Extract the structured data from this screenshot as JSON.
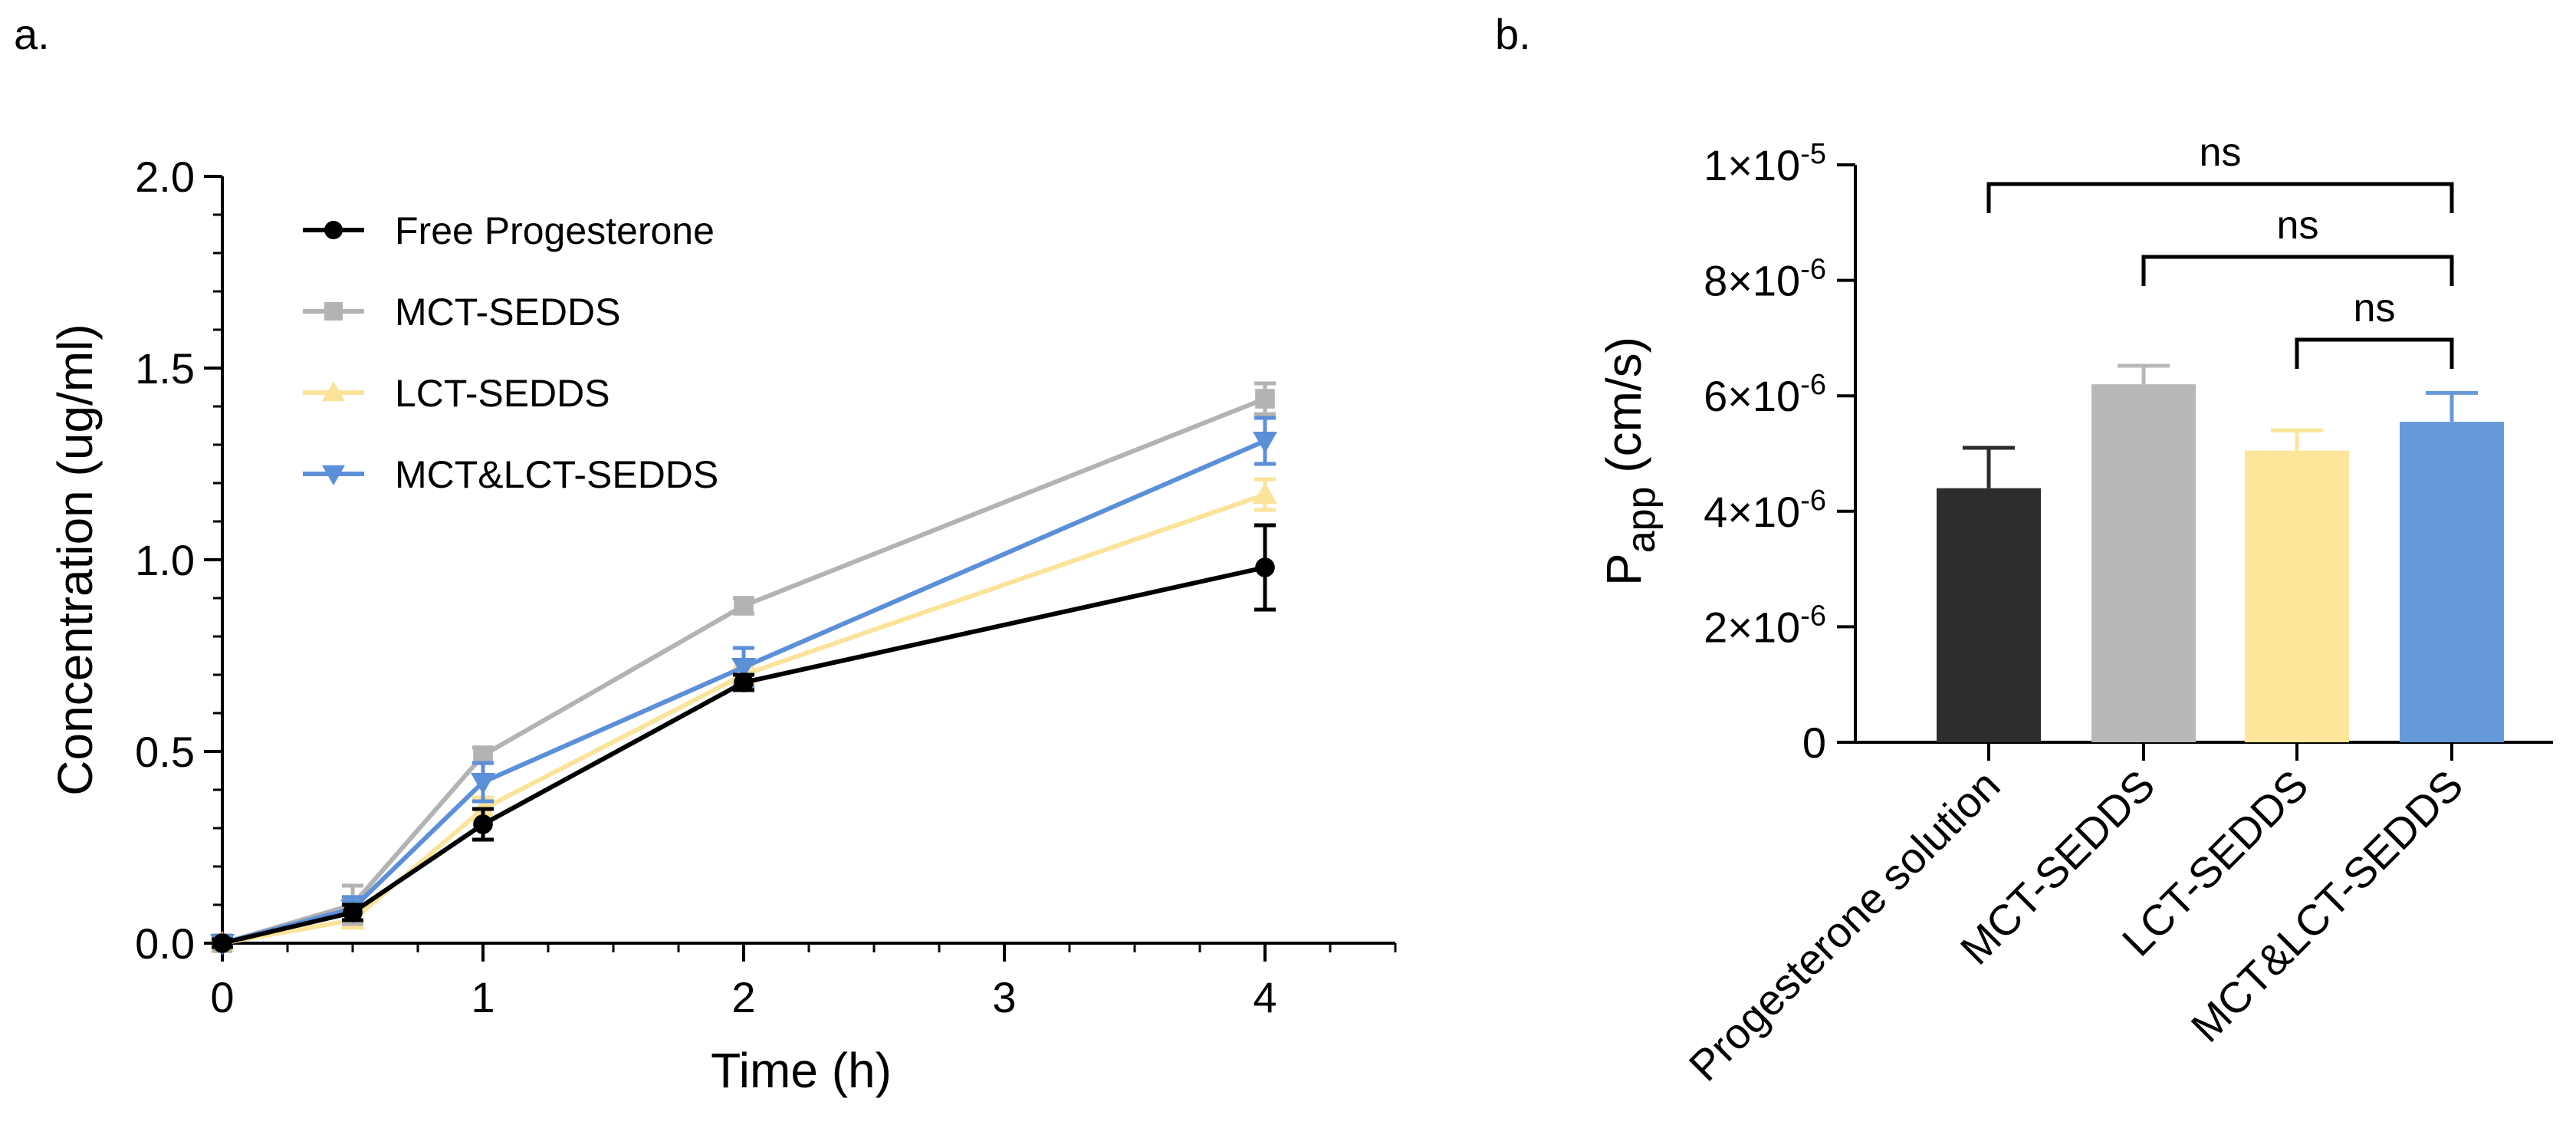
{
  "panels": {
    "a": "a.",
    "b": "b."
  },
  "chart_data": [
    {
      "type": "line",
      "xlabel": "Time (h)",
      "ylabel": "Concentration (ug/ml)",
      "xlim": [
        0,
        4.5
      ],
      "ylim": [
        0,
        2.0
      ],
      "xticks": [
        0,
        1,
        2,
        3,
        4
      ],
      "xtick_labels": [
        "0",
        "1",
        "2",
        "3",
        "4"
      ],
      "yticks": [
        0,
        0.5,
        1.0,
        1.5,
        2.0
      ],
      "ytick_labels": [
        "0.0",
        "0.5",
        "1.0",
        "1.5",
        "2.0"
      ],
      "legend_position": "top-left",
      "x": [
        0,
        0.5,
        1,
        2,
        4
      ],
      "series": [
        {
          "name": "Free Progesterone",
          "color": "#000000",
          "marker": "circle",
          "values": [
            0,
            0.08,
            0.31,
            0.68,
            0.98
          ],
          "errors": [
            0.01,
            0.02,
            0.04,
            0.02,
            0.11
          ]
        },
        {
          "name": "MCT-SEDDS",
          "color": "#b3b3b3",
          "marker": "square",
          "values": [
            0,
            0.1,
            0.49,
            0.88,
            1.42
          ],
          "errors": [
            0.01,
            0.05,
            0.02,
            0.02,
            0.04
          ]
        },
        {
          "name": "LCT-SEDDS",
          "color": "#fbe39a",
          "marker": "triangle-up",
          "values": [
            0,
            0.06,
            0.35,
            0.7,
            1.17
          ],
          "errors": [
            0.01,
            0.02,
            0.03,
            0.02,
            0.04
          ]
        },
        {
          "name": "MCT&LCT-SEDDS",
          "color": "#5b8fd8",
          "marker": "triangle-down",
          "values": [
            0,
            0.09,
            0.42,
            0.72,
            1.31
          ],
          "errors": [
            0.01,
            0.03,
            0.05,
            0.05,
            0.06
          ]
        }
      ]
    },
    {
      "type": "bar",
      "ylabel_main": "P",
      "ylabel_sub": "app",
      "ylabel_unit": " (cm/s)",
      "ylim": [
        0,
        1e-05
      ],
      "yticks": [
        0,
        2e-06,
        4e-06,
        6e-06,
        8e-06,
        1e-05
      ],
      "ytick_labels": [
        {
          "mantissa": "0",
          "exp": ""
        },
        {
          "mantissa": "2×10",
          "exp": "-6"
        },
        {
          "mantissa": "4×10",
          "exp": "-6"
        },
        {
          "mantissa": "6×10",
          "exp": "-6"
        },
        {
          "mantissa": "8×10",
          "exp": "-6"
        },
        {
          "mantissa": "1×10",
          "exp": "-5"
        }
      ],
      "categories": [
        "Progesterone solution",
        "MCT-SEDDS",
        "LCT-SEDDS",
        "MCT&LCT-SEDDS"
      ],
      "values": [
        4.4e-06,
        6.2e-06,
        5.05e-06,
        5.55e-06
      ],
      "errors": [
        7e-07,
        3.2e-07,
        3.5e-07,
        5e-07
      ],
      "colors": [
        "#2d2d2d",
        "#b8b8b8",
        "#fde59a",
        "#6699d8"
      ],
      "comparisons": [
        {
          "from": 0,
          "to": 3,
          "label": "ns"
        },
        {
          "from": 1,
          "to": 3,
          "label": "ns"
        },
        {
          "from": 2,
          "to": 3,
          "label": "ns"
        }
      ]
    }
  ]
}
